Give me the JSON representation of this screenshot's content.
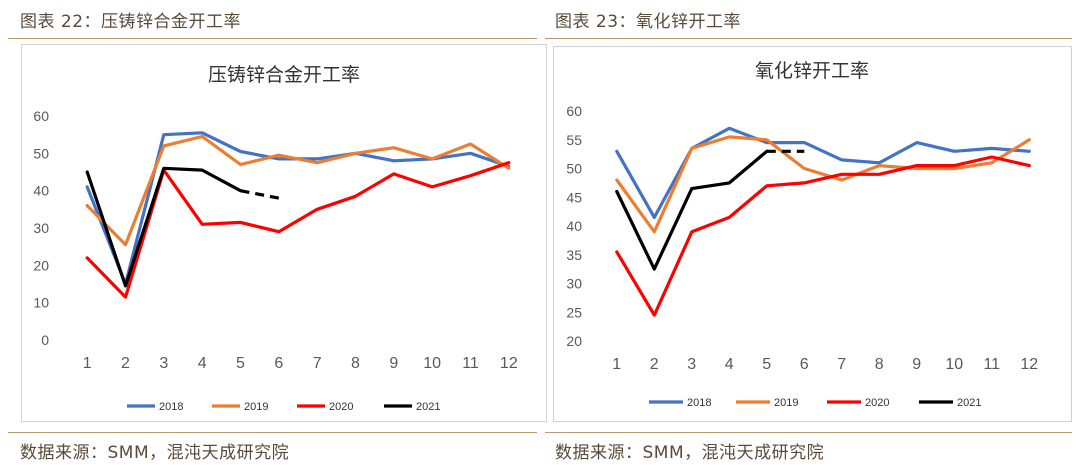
{
  "figures": [
    {
      "caption": "图表 22：压铸锌合金开工率",
      "source": "数据来源：SMM，混沌天成研究院",
      "chart_data": {
        "type": "line",
        "title": "压铸锌合金开工率",
        "xlabel": "",
        "ylabel": "",
        "categories": [
          "1",
          "2",
          "3",
          "4",
          "5",
          "6",
          "7",
          "8",
          "9",
          "10",
          "11",
          "12"
        ],
        "ylim": [
          0,
          60
        ],
        "yticks": [
          0,
          10,
          20,
          30,
          40,
          50,
          60
        ],
        "legend_position": "bottom",
        "series": [
          {
            "name": "2018",
            "color": "#4472c4",
            "dashed_from_index": null,
            "values": [
              41,
              15,
              55,
              55.5,
              50.5,
              48.5,
              48.5,
              50,
              48,
              48.5,
              50,
              46.5
            ]
          },
          {
            "name": "2019",
            "color": "#ed7d31",
            "dashed_from_index": null,
            "values": [
              36,
              25.5,
              52,
              54.5,
              47,
              49.5,
              47.5,
              50,
              51.5,
              48.5,
              52.5,
              46
            ]
          },
          {
            "name": "2020",
            "color": "#ff0000",
            "dashed_from_index": null,
            "values": [
              22,
              11.5,
              45.5,
              31,
              31.5,
              29,
              35,
              38.5,
              44.5,
              41,
              44,
              47.5
            ]
          },
          {
            "name": "2021",
            "color": "#000000",
            "dashed_from_index": 4,
            "values": [
              45,
              14.5,
              46,
              45.5,
              40,
              38,
              null,
              null,
              null,
              null,
              null,
              null
            ]
          }
        ]
      }
    },
    {
      "caption": "图表 23：氧化锌开工率",
      "source": "数据来源：SMM，混沌天成研究院",
      "chart_data": {
        "type": "line",
        "title": "氧化锌开工率",
        "xlabel": "",
        "ylabel": "",
        "categories": [
          "1",
          "2",
          "3",
          "4",
          "5",
          "6",
          "7",
          "8",
          "9",
          "10",
          "11",
          "12"
        ],
        "ylim": [
          20,
          60
        ],
        "yticks": [
          20,
          25,
          30,
          35,
          40,
          45,
          50,
          55,
          60
        ],
        "legend_position": "bottom",
        "series": [
          {
            "name": "2018",
            "color": "#4472c4",
            "dashed_from_index": null,
            "values": [
              53,
              41.5,
              53.5,
              57,
              54.5,
              54.5,
              51.5,
              51,
              54.5,
              53,
              53.5,
              53
            ]
          },
          {
            "name": "2019",
            "color": "#ed7d31",
            "dashed_from_index": null,
            "values": [
              48,
              39,
              53.5,
              55.5,
              55,
              50,
              48,
              50.5,
              50,
              50,
              51,
              55
            ]
          },
          {
            "name": "2020",
            "color": "#ff0000",
            "dashed_from_index": null,
            "values": [
              35.5,
              24.5,
              39,
              41.5,
              47,
              47.5,
              49,
              49,
              50.5,
              50.5,
              52,
              50.5
            ]
          },
          {
            "name": "2021",
            "color": "#000000",
            "dashed_from_index": 4,
            "values": [
              46,
              32.5,
              46.5,
              47.5,
              53,
              53,
              null,
              null,
              null,
              null,
              null,
              null
            ]
          }
        ]
      }
    }
  ]
}
